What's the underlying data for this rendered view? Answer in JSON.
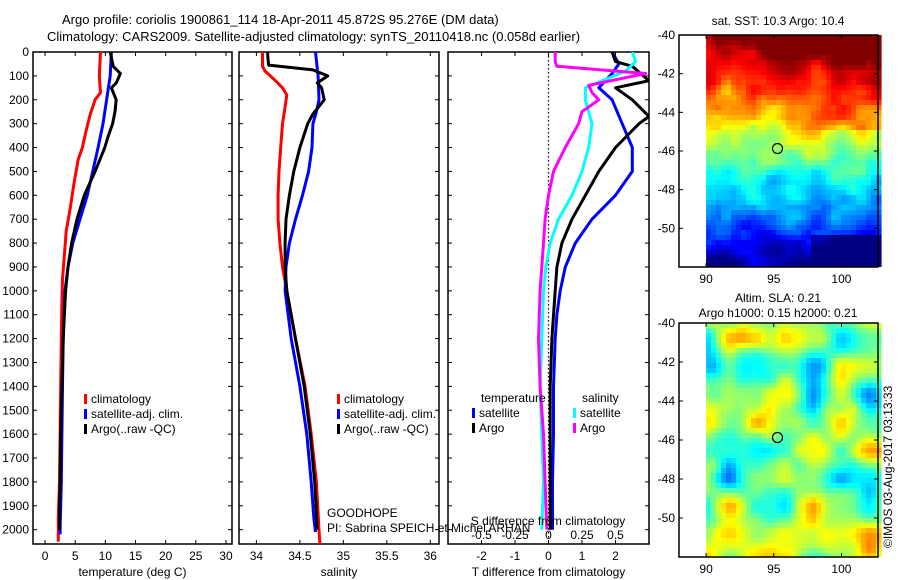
{
  "header": {
    "title_line1": "Argo profile: coriolis 1900861_114 18-Apr-2011 45.872S 95.276E (DM data)",
    "title_line2": "Climatology: CARS2009. Satellite-adjusted climatology: synTS_20110418.nc (0.058d earlier)"
  },
  "colors": {
    "climatology": "#ff0000",
    "satellite": "#0000ff",
    "argo": "#000000",
    "sal_satellite": "#00ffff",
    "sal_argo": "#ff00ff"
  },
  "chart_data": [
    {
      "type": "line",
      "id": "temperature",
      "xlabel": "temperature (deg C)",
      "ylabel": "",
      "xlim": [
        -2,
        31
      ],
      "ylim": [
        2060,
        0
      ],
      "xticks": [
        0,
        5,
        10,
        15,
        20,
        25,
        30
      ],
      "yticks": [
        0,
        100,
        200,
        300,
        400,
        500,
        600,
        700,
        800,
        900,
        1000,
        1100,
        1200,
        1300,
        1400,
        1500,
        1600,
        1700,
        1800,
        1900,
        2000
      ],
      "legend": [
        "climatology",
        "satellite-adj. clim.",
        "Argo(..raw -QC)"
      ],
      "legend_position": "center",
      "series": [
        {
          "name": "climatology",
          "color_key": "climatology",
          "depth": [
            0,
            100,
            170,
            200,
            260,
            330,
            400,
            450,
            550,
            650,
            750,
            850,
            950,
            1050,
            1200,
            1400,
            1600,
            1800,
            1950,
            2050
          ],
          "values": [
            9.2,
            9.0,
            9.2,
            8.3,
            7.5,
            6.8,
            6.2,
            5.5,
            4.8,
            4.2,
            3.5,
            3.2,
            2.9,
            2.8,
            2.7,
            2.6,
            2.5,
            2.4,
            2.2,
            2.2
          ]
        },
        {
          "name": "satellite-adj. clim.",
          "color_key": "satellite",
          "depth": [
            0,
            100,
            200,
            300,
            400,
            500,
            600,
            700,
            800,
            900,
            1000,
            1200,
            1400,
            1600,
            1800,
            2000,
            2020
          ],
          "values": [
            11.0,
            10.8,
            10.2,
            9.6,
            8.8,
            7.9,
            7.0,
            5.8,
            4.6,
            3.8,
            3.3,
            3.0,
            2.9,
            2.8,
            2.7,
            2.5,
            2.5
          ]
        },
        {
          "name": "Argo(..raw -QC)",
          "color_key": "argo",
          "depth": [
            0,
            60,
            90,
            130,
            150,
            200,
            250,
            300,
            350,
            400,
            500,
            600,
            700,
            800,
            900,
            1000,
            1200,
            1400,
            1600,
            1800,
            1900,
            2000
          ],
          "values": [
            10.8,
            11.3,
            12.5,
            11.8,
            11.0,
            11.8,
            11.6,
            11.2,
            10.5,
            9.9,
            8.3,
            6.5,
            5.3,
            4.4,
            3.8,
            3.4,
            3.0,
            2.8,
            2.6,
            2.5,
            2.4,
            2.4
          ]
        }
      ]
    },
    {
      "type": "line",
      "id": "salinity",
      "xlabel": "salinity",
      "xlim": [
        33.8,
        36.1
      ],
      "ylim": [
        2060,
        0
      ],
      "xticks": [
        34,
        34.5,
        35,
        35.5,
        36
      ],
      "legend": [
        "climatology",
        "satellite-adj. clim.",
        "Argo(..raw -QC)"
      ],
      "legend_position": "center-right",
      "annotation": [
        "GOODHOPE",
        "PI: Sabrina SPEICH et Michel ARHAN"
      ],
      "series": [
        {
          "name": "climatology",
          "color_key": "climatology",
          "depth": [
            0,
            60,
            80,
            120,
            150,
            180,
            230,
            300,
            400,
            500,
            600,
            700,
            800,
            900,
            1000,
            1200,
            1400,
            1600,
            1800,
            2000,
            2060
          ],
          "values": [
            34.07,
            34.07,
            34.1,
            34.22,
            34.3,
            34.35,
            34.33,
            34.3,
            34.28,
            34.26,
            34.25,
            34.25,
            34.27,
            34.3,
            34.35,
            34.45,
            34.56,
            34.63,
            34.69,
            34.72,
            34.73
          ]
        },
        {
          "name": "satellite-adj. clim.",
          "color_key": "satellite",
          "depth": [
            0,
            100,
            200,
            250,
            300,
            400,
            500,
            600,
            700,
            800,
            900,
            1000,
            1200,
            1400,
            1600,
            1800,
            1950,
            2010
          ],
          "values": [
            34.68,
            34.71,
            34.72,
            34.69,
            34.65,
            34.64,
            34.6,
            34.53,
            34.45,
            34.38,
            34.34,
            34.33,
            34.4,
            34.5,
            34.58,
            34.63,
            34.66,
            34.68
          ]
        },
        {
          "name": "Argo(..raw -QC)",
          "color_key": "argo",
          "depth": [
            0,
            15,
            55,
            75,
            100,
            130,
            150,
            200,
            260,
            300,
            400,
            500,
            600,
            700,
            800,
            900,
            1000,
            1200,
            1400,
            1600,
            1800,
            2000
          ],
          "values": [
            34.13,
            34.13,
            34.14,
            34.65,
            34.82,
            34.7,
            34.75,
            34.78,
            34.65,
            34.59,
            34.5,
            34.43,
            34.38,
            34.34,
            34.33,
            34.33,
            34.35,
            34.45,
            34.55,
            34.62,
            34.67,
            34.7
          ]
        }
      ]
    },
    {
      "type": "line",
      "id": "difference",
      "xlabel": "T difference from climatology",
      "xlabel_top": "S difference from climatology",
      "xlim": [
        -3,
        3
      ],
      "ylim": [
        2060,
        0
      ],
      "xticks": [
        -2,
        -1,
        0,
        1,
        2
      ],
      "sticks_labels": [
        "-0.5",
        "-0.25",
        "0",
        "0.25",
        "0.5"
      ],
      "sticks_values": [
        -2,
        -1,
        0,
        1,
        2
      ],
      "legend_groups": [
        {
          "title": "temperature",
          "items": [
            "satellite",
            "Argo"
          ]
        },
        {
          "title": "salinity",
          "items": [
            "satellite",
            "Argo"
          ]
        }
      ],
      "zero_line": "dotted",
      "series": [
        {
          "name": "temperature satellite",
          "color_key": "satellite",
          "depth": [
            0,
            50,
            90,
            150,
            200,
            300,
            400,
            500,
            600,
            700,
            800,
            900,
            1000,
            1100,
            1200,
            1400,
            1600,
            1800,
            2000
          ],
          "values": [
            1.9,
            2.1,
            1.9,
            1.5,
            1.9,
            2.2,
            2.5,
            2.5,
            2.0,
            1.3,
            0.8,
            0.5,
            0.35,
            0.25,
            0.2,
            0.15,
            0.15,
            0.12,
            0.12
          ]
        },
        {
          "name": "temperature Argo",
          "color_key": "argo",
          "depth": [
            0,
            40,
            60,
            120,
            150,
            200,
            270,
            300,
            400,
            500,
            600,
            700,
            800,
            900,
            1000,
            1200,
            1400,
            1600,
            1800,
            2000
          ],
          "values": [
            1.9,
            2.0,
            2.5,
            3.0,
            2.0,
            2.5,
            3.0,
            2.7,
            2.0,
            1.5,
            1.1,
            0.7,
            0.4,
            0.25,
            0.2,
            0.1,
            0.05,
            0.05,
            0.05,
            0.05
          ]
        },
        {
          "name": "salinity satellite",
          "color_key": "sal_satellite",
          "depth": [
            0,
            40,
            80,
            150,
            200,
            300,
            400,
            500,
            600,
            700,
            800,
            900,
            1000,
            1200,
            1400,
            1600,
            1800,
            2000
          ],
          "values": [
            2.5,
            2.6,
            2.3,
            1.1,
            1.1,
            1.3,
            1.2,
            1.0,
            0.7,
            0.3,
            0.05,
            -0.08,
            -0.15,
            -0.2,
            -0.25,
            -0.2,
            -0.15,
            -0.2
          ]
        },
        {
          "name": "salinity Argo",
          "color_key": "sal_argo",
          "depth": [
            0,
            40,
            60,
            90,
            140,
            170,
            200,
            250,
            300,
            400,
            500,
            600,
            700,
            800,
            900,
            1000,
            1200,
            1400,
            1600,
            1800,
            2000
          ],
          "values": [
            0.2,
            0.2,
            0.25,
            2.9,
            1.2,
            1.3,
            1.5,
            1.0,
            0.9,
            0.5,
            0.15,
            0.0,
            -0.1,
            -0.15,
            -0.2,
            -0.25,
            -0.3,
            -0.25,
            -0.15,
            -0.1,
            -0.05
          ]
        }
      ]
    },
    {
      "type": "heatmap",
      "id": "sst-map",
      "title": "sat. SST: 10.3 Argo: 10.4",
      "xlim": [
        88,
        102.7
      ],
      "ylim": [
        -52,
        -40
      ],
      "xticks": [
        90,
        95,
        100
      ],
      "yticks": [
        -40,
        -42,
        -44,
        -46,
        -48,
        -50
      ],
      "argo_position": {
        "lon": 95.276,
        "lat": -45.872
      },
      "colormap": "jet"
    },
    {
      "type": "heatmap",
      "id": "sla-map",
      "title_line1": "Altim. SLA: 0.21",
      "title_line2": "Argo h1000: 0.15 h2000: 0.21",
      "xlim": [
        88,
        102.7
      ],
      "ylim": [
        -52,
        -40
      ],
      "xticks": [
        90,
        95,
        100
      ],
      "yticks": [
        -40,
        -42,
        -44,
        -46,
        -48,
        -50
      ],
      "argo_position": {
        "lon": 95.276,
        "lat": -45.872
      },
      "colormap": "jet"
    }
  ],
  "legend_labels": {
    "climatology": "climatology",
    "satellite_adj": "satellite-adj. clim.",
    "argo_raw": "Argo(..raw -QC)",
    "temperature": "temperature",
    "salinity": "salinity",
    "satellite": "satellite",
    "argo": "Argo"
  },
  "watermark": "©IMOS 03-Aug-2017 03:13:33"
}
